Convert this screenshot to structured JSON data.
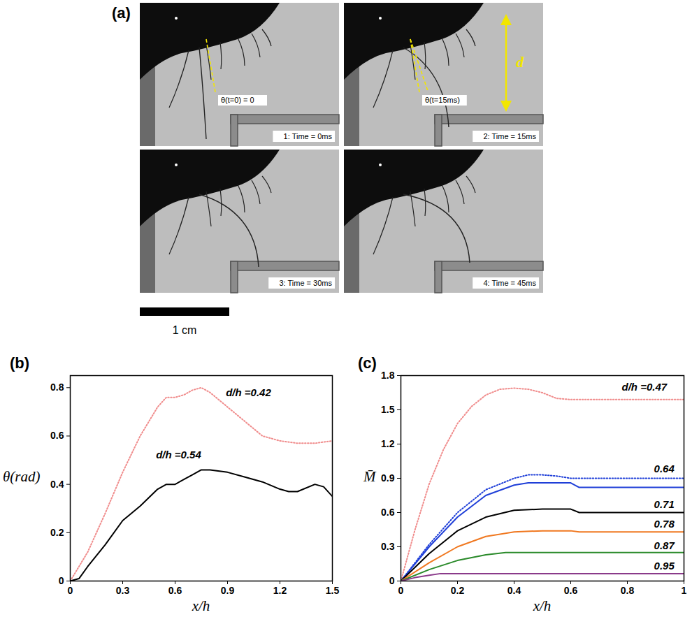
{
  "photos": {
    "panel": "(a)",
    "frames": [
      {
        "label": "1: Time = 0ms",
        "angle_label": "θ(t=0) = 0"
      },
      {
        "label": "2: Time = 15ms",
        "angle_label": "θ(t=15ms)",
        "distance_label": "d"
      },
      {
        "label": "3: Time = 30ms"
      },
      {
        "label": "4: Time = 45ms"
      }
    ],
    "scale_bar": "1 cm"
  },
  "chart_data": [
    {
      "panel": "(b)",
      "type": "line",
      "x_label": "x/h",
      "y_label": "θ(rad)",
      "xlim": [
        0,
        1.5
      ],
      "xticks": [
        0,
        0.3,
        0.6,
        0.9,
        1.2,
        1.5
      ],
      "ylim": [
        0,
        0.85
      ],
      "yticks": [
        0,
        0.2,
        0.4,
        0.6,
        0.8
      ],
      "series": [
        {
          "color": "#f08c8c",
          "line_style": "dotted",
          "x": [
            0,
            0.1,
            0.2,
            0.3,
            0.4,
            0.5,
            0.55,
            0.6,
            0.65,
            0.7,
            0.75,
            0.8,
            0.9,
            1.0,
            1.1,
            1.2,
            1.3,
            1.4,
            1.5
          ],
          "values": [
            0,
            0.12,
            0.28,
            0.45,
            0.6,
            0.72,
            0.76,
            0.76,
            0.77,
            0.79,
            0.8,
            0.78,
            0.72,
            0.66,
            0.6,
            0.58,
            0.57,
            0.57,
            0.58
          ]
        },
        {
          "color": "#000000",
          "line_style": "solid",
          "x": [
            0,
            0.05,
            0.1,
            0.2,
            0.3,
            0.4,
            0.5,
            0.55,
            0.6,
            0.65,
            0.7,
            0.75,
            0.8,
            0.9,
            1.0,
            1.1,
            1.2,
            1.25,
            1.3,
            1.4,
            1.45,
            1.5
          ],
          "values": [
            0,
            0.01,
            0.06,
            0.15,
            0.25,
            0.31,
            0.38,
            0.4,
            0.4,
            0.42,
            0.44,
            0.46,
            0.46,
            0.45,
            0.43,
            0.41,
            0.38,
            0.37,
            0.37,
            0.4,
            0.39,
            0.35
          ]
        }
      ],
      "annotations": [
        {
          "text": "d/h =0.42",
          "x": 1.02,
          "y": 0.78
        },
        {
          "text": "d/h =0.54",
          "x": 0.62,
          "y": 0.52
        }
      ]
    },
    {
      "panel": "(c)",
      "type": "line",
      "x_label": "x/h",
      "y_label": "M̄",
      "xlim": [
        0,
        1
      ],
      "xticks": [
        0,
        0.2,
        0.4,
        0.6,
        0.8,
        1
      ],
      "ylim": [
        0,
        1.8
      ],
      "yticks": [
        0,
        0.3,
        0.6,
        0.9,
        1.2,
        1.5,
        1.8
      ],
      "series": [
        {
          "color": "#f08c8c",
          "line_style": "dotted",
          "x": [
            0,
            0.05,
            0.1,
            0.15,
            0.2,
            0.25,
            0.3,
            0.35,
            0.4,
            0.45,
            0.5,
            0.55,
            0.6,
            1.0
          ],
          "values": [
            0,
            0.45,
            0.85,
            1.15,
            1.38,
            1.53,
            1.63,
            1.68,
            1.69,
            1.68,
            1.65,
            1.6,
            1.59,
            1.59
          ]
        },
        {
          "color": "#1f3fd8",
          "line_style": "dotted",
          "x": [
            0,
            0.1,
            0.2,
            0.3,
            0.4,
            0.45,
            0.5,
            0.55,
            0.6,
            0.63,
            1.0
          ],
          "values": [
            0,
            0.32,
            0.6,
            0.8,
            0.9,
            0.93,
            0.93,
            0.92,
            0.9,
            0.9,
            0.9
          ]
        },
        {
          "color": "#1f3fd8",
          "line_style": "solid",
          "x": [
            0,
            0.1,
            0.2,
            0.3,
            0.4,
            0.45,
            0.5,
            0.55,
            0.6,
            0.63,
            1.0
          ],
          "values": [
            0,
            0.3,
            0.56,
            0.75,
            0.84,
            0.86,
            0.86,
            0.86,
            0.86,
            0.82,
            0.82
          ]
        },
        {
          "color": "#000000",
          "line_style": "solid",
          "x": [
            0,
            0.1,
            0.2,
            0.3,
            0.4,
            0.5,
            0.6,
            0.63,
            1.0
          ],
          "values": [
            0,
            0.24,
            0.44,
            0.56,
            0.62,
            0.63,
            0.63,
            0.6,
            0.6
          ]
        },
        {
          "color": "#f07820",
          "line_style": "solid",
          "x": [
            0,
            0.1,
            0.2,
            0.3,
            0.4,
            0.5,
            0.6,
            0.63,
            1.0
          ],
          "values": [
            0,
            0.16,
            0.3,
            0.39,
            0.43,
            0.44,
            0.44,
            0.43,
            0.43
          ]
        },
        {
          "color": "#2a8a2a",
          "line_style": "solid",
          "x": [
            0,
            0.1,
            0.2,
            0.3,
            0.37,
            1.0
          ],
          "values": [
            0,
            0.1,
            0.18,
            0.23,
            0.25,
            0.25
          ]
        },
        {
          "color": "#8a3a8a",
          "line_style": "solid",
          "x": [
            0,
            0.05,
            0.1,
            0.14,
            1.0
          ],
          "values": [
            0,
            0.03,
            0.05,
            0.065,
            0.065
          ]
        }
      ],
      "annotations": [
        {
          "text": "d/h =0.47",
          "x": 0.86,
          "y": 1.7
        },
        {
          "text": "0.64",
          "x": 0.93,
          "y": 0.98
        },
        {
          "text": "0.71",
          "x": 0.93,
          "y": 0.67
        },
        {
          "text": "0.78",
          "x": 0.93,
          "y": 0.5
        },
        {
          "text": "0.87",
          "x": 0.93,
          "y": 0.31
        },
        {
          "text": "0.95",
          "x": 0.93,
          "y": 0.13
        }
      ]
    }
  ]
}
